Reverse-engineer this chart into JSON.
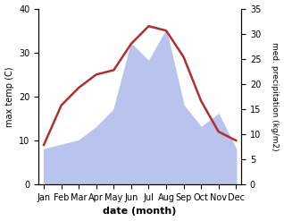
{
  "months": [
    "Jan",
    "Feb",
    "Mar",
    "Apr",
    "May",
    "Jun",
    "Jul",
    "Aug",
    "Sep",
    "Oct",
    "Nov",
    "Dec"
  ],
  "temperature": [
    9,
    18,
    22,
    25,
    26,
    32,
    36,
    35,
    29,
    19,
    12,
    10
  ],
  "precipitation": [
    8,
    9,
    10,
    13,
    17,
    32,
    28,
    35,
    18,
    13,
    16,
    8
  ],
  "temp_color": "#b03030",
  "precip_fill_color": "#b8c4ee",
  "background_color": "#ffffff",
  "xlabel": "date (month)",
  "ylabel_left": "max temp (C)",
  "ylabel_right": "med. precipitation (kg/m2)",
  "ylim_left": [
    0,
    40
  ],
  "ylim_right": [
    0,
    35
  ],
  "yticks_left": [
    0,
    10,
    20,
    30,
    40
  ],
  "yticks_right": [
    0,
    5,
    10,
    15,
    20,
    25,
    30,
    35
  ]
}
